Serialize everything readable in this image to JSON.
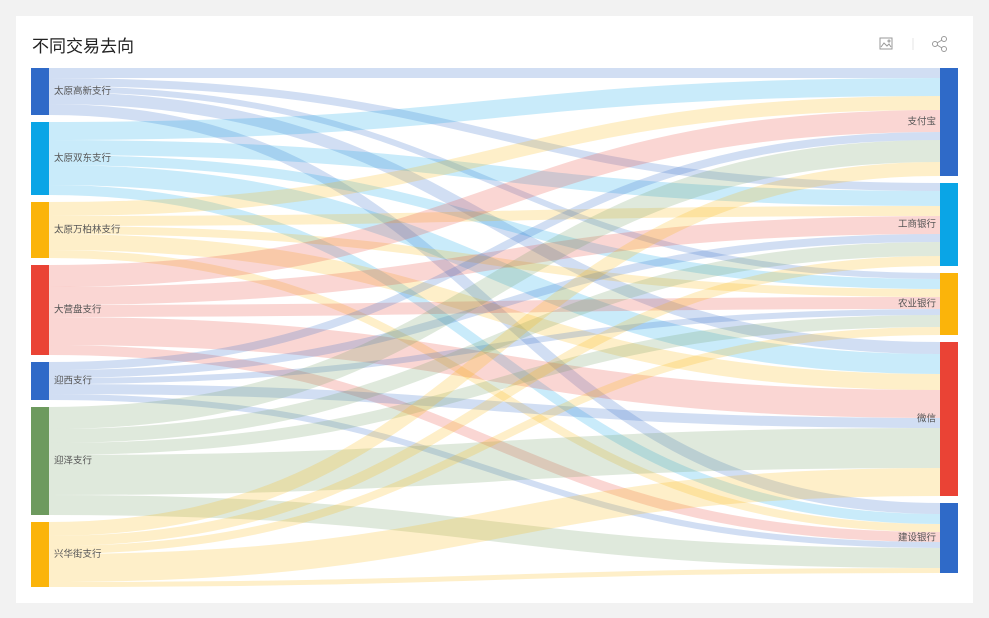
{
  "chart_data": {
    "type": "sankey",
    "title": "不同交易去向",
    "sources": [
      {
        "name": "太原高新支行",
        "color": "#2f6ac8"
      },
      {
        "name": "太原双东支行",
        "color": "#0aa5e6"
      },
      {
        "name": "太原万柏林支行",
        "color": "#fbb40a"
      },
      {
        "name": "大营盘支行",
        "color": "#ea4335"
      },
      {
        "name": "迎西支行",
        "color": "#2f6ac8"
      },
      {
        "name": "迎泽支行",
        "color": "#6d9a5e"
      },
      {
        "name": "兴华街支行",
        "color": "#fbb40a"
      }
    ],
    "targets": [
      {
        "name": "支付宝",
        "color": "#2f6ac8"
      },
      {
        "name": "工商银行",
        "color": "#0aa5e6"
      },
      {
        "name": "农业银行",
        "color": "#fbb40a"
      },
      {
        "name": "微信",
        "color": "#ea4335"
      },
      {
        "name": "建设银行",
        "color": "#2f6ac8"
      }
    ],
    "links": [
      {
        "source": 0,
        "target": 0,
        "value": 10
      },
      {
        "source": 0,
        "target": 1,
        "value": 8
      },
      {
        "source": 0,
        "target": 2,
        "value": 6
      },
      {
        "source": 0,
        "target": 3,
        "value": 12
      },
      {
        "source": 0,
        "target": 4,
        "value": 11
      },
      {
        "source": 1,
        "target": 0,
        "value": 18
      },
      {
        "source": 1,
        "target": 1,
        "value": 15
      },
      {
        "source": 1,
        "target": 2,
        "value": 10
      },
      {
        "source": 1,
        "target": 3,
        "value": 20
      },
      {
        "source": 1,
        "target": 4,
        "value": 10
      },
      {
        "source": 2,
        "target": 0,
        "value": 14
      },
      {
        "source": 2,
        "target": 1,
        "value": 10
      },
      {
        "source": 2,
        "target": 2,
        "value": 8
      },
      {
        "source": 2,
        "target": 3,
        "value": 16
      },
      {
        "source": 2,
        "target": 4,
        "value": 8
      },
      {
        "source": 3,
        "target": 0,
        "value": 22
      },
      {
        "source": 3,
        "target": 1,
        "value": 18
      },
      {
        "source": 3,
        "target": 2,
        "value": 12
      },
      {
        "source": 3,
        "target": 3,
        "value": 28
      },
      {
        "source": 3,
        "target": 4,
        "value": 10
      },
      {
        "source": 4,
        "target": 0,
        "value": 8
      },
      {
        "source": 4,
        "target": 1,
        "value": 8
      },
      {
        "source": 4,
        "target": 2,
        "value": 6
      },
      {
        "source": 4,
        "target": 3,
        "value": 10
      },
      {
        "source": 4,
        "target": 4,
        "value": 6
      },
      {
        "source": 5,
        "target": 0,
        "value": 22
      },
      {
        "source": 5,
        "target": 1,
        "value": 14
      },
      {
        "source": 5,
        "target": 2,
        "value": 12
      },
      {
        "source": 5,
        "target": 3,
        "value": 40
      },
      {
        "source": 5,
        "target": 4,
        "value": 20
      },
      {
        "source": 6,
        "target": 0,
        "value": 14
      },
      {
        "source": 6,
        "target": 1,
        "value": 10
      },
      {
        "source": 6,
        "target": 2,
        "value": 8
      },
      {
        "source": 6,
        "target": 3,
        "value": 28
      },
      {
        "source": 6,
        "target": 4,
        "value": 5
      }
    ]
  }
}
